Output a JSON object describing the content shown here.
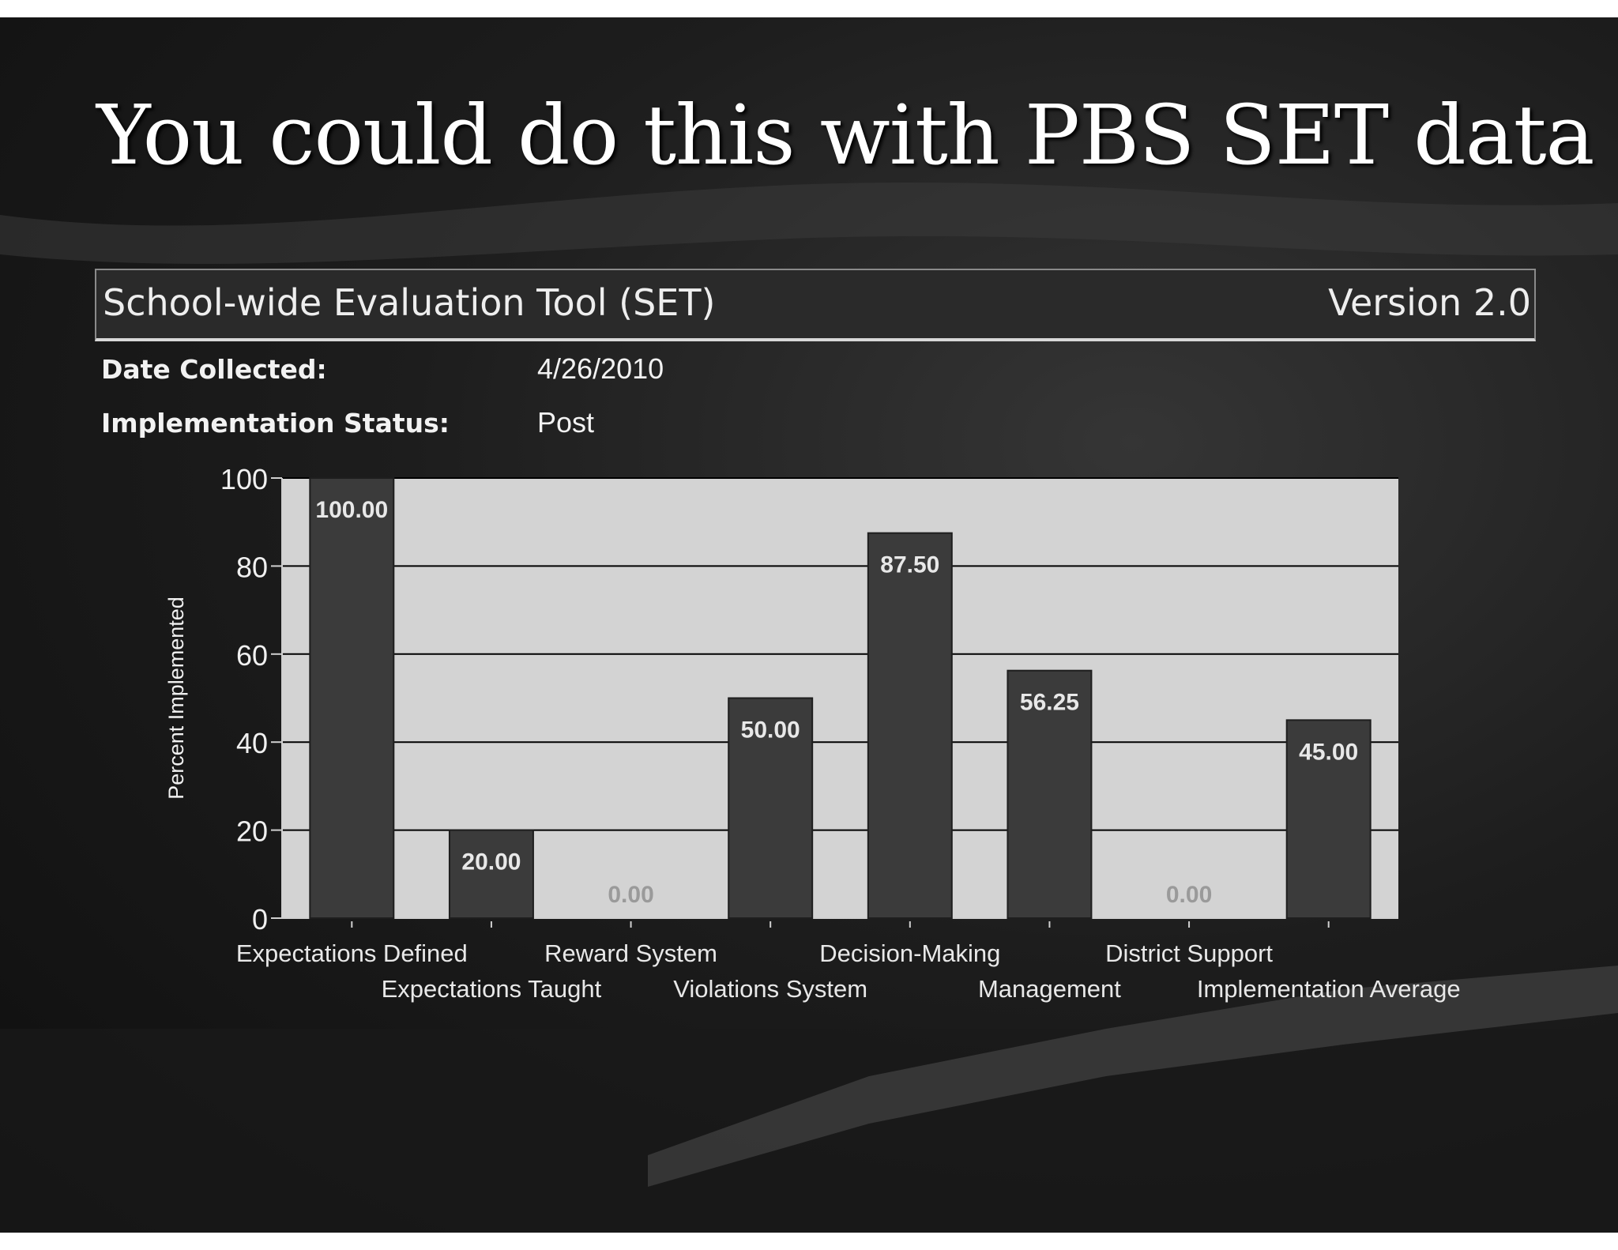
{
  "slide": {
    "title": "You could do this with PBS SET data"
  },
  "tool": {
    "name": "School-wide Evaluation Tool (SET)",
    "version": "Version 2.0"
  },
  "meta": {
    "date_label": "Date Collected:",
    "date_value": "4/26/2010",
    "status_label": "Implementation Status:",
    "status_value": "Post"
  },
  "colors": {
    "plot_background": "#d3d3d3",
    "bar": "#3b3b3b",
    "bar_label": "#e8e8e8",
    "zero_label": "#9a9a9a"
  },
  "chart_data": {
    "type": "bar",
    "categories": [
      "Expectations Defined",
      "Expectations Taught",
      "Reward System",
      "Violations System",
      "Decision-Making",
      "Management",
      "District Support",
      "Implementation Average"
    ],
    "values": [
      100.0,
      20.0,
      0.0,
      50.0,
      87.5,
      56.25,
      0.0,
      45.0
    ],
    "value_labels": [
      "100.00",
      "20.00",
      "0.00",
      "50.00",
      "87.50",
      "56.25",
      "0.00",
      "45.00"
    ],
    "ylabel": "Percent Implemented",
    "xlabel": "",
    "ylim": [
      0,
      100
    ],
    "yticks": [
      0,
      20,
      40,
      60,
      80,
      100
    ],
    "grid": true,
    "legend": "none"
  }
}
